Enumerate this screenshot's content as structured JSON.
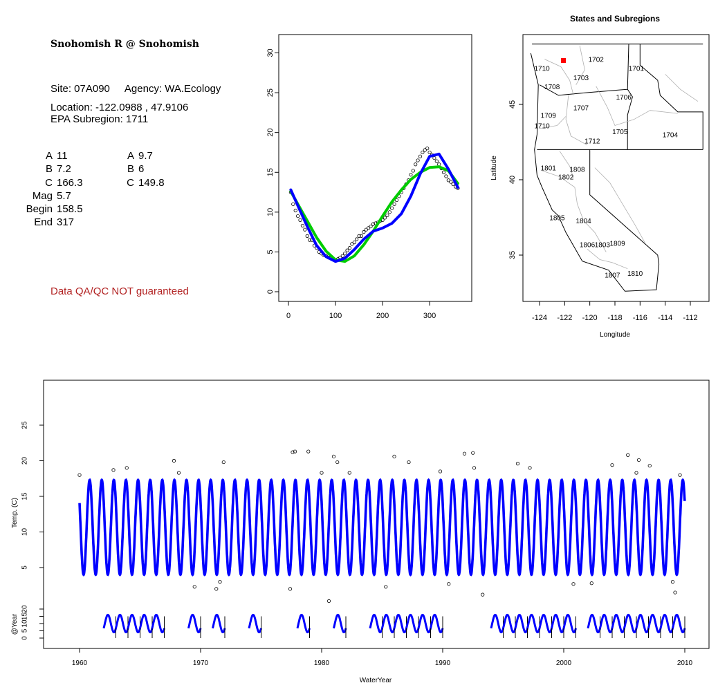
{
  "site": {
    "title": "Snohomish R @ Snohomish",
    "site_line": "Site: 07A090",
    "agency_line": "Agency: WA.Ecology",
    "location_line": "Location: -122.0988 , 47.9106",
    "subregion_line": "EPA Subregion: 1711",
    "disclaimer": "Data QA/QC NOT guaranteed"
  },
  "params": {
    "left": [
      {
        "label": "A",
        "value": "11"
      },
      {
        "label": "B",
        "value": "7.2"
      },
      {
        "label": "C",
        "value": "166.3"
      },
      {
        "label": "Mag",
        "value": "5.7"
      },
      {
        "label": "Begin",
        "value": "158.5"
      },
      {
        "label": "End",
        "value": "317"
      }
    ],
    "right": [
      {
        "label": "A",
        "value": "9.7"
      },
      {
        "label": "B",
        "value": "6"
      },
      {
        "label": "C",
        "value": "149.8"
      }
    ]
  },
  "colors": {
    "fit_blue": "#0000ff",
    "fit_green": "#00cc00",
    "point": "#000000",
    "disclaimer": "#b22222",
    "state_line": "#000000",
    "subregion_line": "#b0b0b0",
    "site_marker": "#ff0000"
  },
  "chart_data": [
    {
      "type": "scatter",
      "xlim": [
        0,
        366
      ],
      "ylim": [
        0,
        31
      ],
      "xticks": [
        0,
        100,
        200,
        300
      ],
      "yticks": [
        0,
        5,
        10,
        15,
        20,
        25,
        30
      ],
      "series": [
        {
          "kind": "points",
          "marker": "open-circle",
          "x": [
            5,
            10,
            15,
            20,
            25,
            30,
            35,
            40,
            45,
            50,
            55,
            60,
            65,
            70,
            75,
            80,
            85,
            90,
            95,
            100,
            105,
            110,
            115,
            120,
            125,
            130,
            135,
            140,
            145,
            150,
            155,
            160,
            165,
            170,
            175,
            180,
            185,
            190,
            195,
            200,
            205,
            210,
            215,
            220,
            225,
            230,
            235,
            240,
            245,
            250,
            255,
            260,
            265,
            270,
            275,
            280,
            285,
            290,
            295,
            300,
            305,
            310,
            315,
            320,
            325,
            330,
            335,
            340,
            345,
            350,
            355,
            360
          ],
          "y": [
            12.5,
            11,
            10.2,
            9.5,
            9,
            8.3,
            7.8,
            7,
            6.5,
            6.5,
            5.8,
            5.5,
            5,
            4.8,
            4.6,
            4.5,
            4.3,
            4.2,
            4.1,
            4,
            4.1,
            4.3,
            4.5,
            4.8,
            5.2,
            5.5,
            6,
            6.2,
            6.6,
            7,
            7,
            7.5,
            7.8,
            8,
            8.2,
            8.5,
            8.6,
            8.7,
            8.9,
            9,
            9.3,
            9.6,
            10,
            10.5,
            11,
            11.5,
            12,
            12.5,
            13,
            13.5,
            14,
            14.7,
            15.2,
            16,
            16.5,
            17,
            17.5,
            17.8,
            18,
            17.5,
            17.2,
            16.8,
            16.4,
            16,
            15.5,
            15,
            14.5,
            14,
            13.8,
            13.5,
            13.2,
            13
          ]
        },
        {
          "kind": "line",
          "color": "#00cc00",
          "x": [
            5,
            20,
            40,
            60,
            80,
            100,
            120,
            140,
            160,
            180,
            200,
            220,
            240,
            260,
            280,
            300,
            320,
            340,
            360
          ],
          "y": [
            12.6,
            11,
            8.9,
            6.8,
            5.1,
            4.0,
            3.8,
            4.5,
            5.9,
            7.6,
            9.5,
            11.3,
            12.8,
            14.1,
            15.0,
            15.6,
            15.7,
            15.2,
            13.6
          ]
        },
        {
          "kind": "line",
          "color": "#0000ff",
          "x": [
            5,
            20,
            40,
            60,
            80,
            100,
            120,
            140,
            160,
            180,
            200,
            220,
            240,
            260,
            280,
            300,
            320,
            340,
            360
          ],
          "y": [
            12.8,
            10.8,
            8.2,
            5.8,
            4.4,
            3.8,
            4.2,
            5.3,
            6.6,
            7.6,
            8.0,
            8.6,
            9.8,
            12.0,
            14.8,
            17.0,
            17.3,
            15.4,
            13.1
          ]
        }
      ]
    },
    {
      "type": "map",
      "title": "States and Subregions",
      "xlabel": "Longitude",
      "ylabel": "Latitude",
      "xlim": [
        -125.5,
        -110.5
      ],
      "ylim": [
        32.3,
        49.5
      ],
      "xticks": [
        -124,
        -122,
        -120,
        -118,
        -116,
        -114,
        -112
      ],
      "yticks": [
        35,
        40,
        45
      ],
      "site": {
        "lon": -122.0988,
        "lat": 47.9106
      },
      "subregion_labels": [
        {
          "text": "1702",
          "lon": -119.5,
          "lat": 48.0
        },
        {
          "text": "1701",
          "lon": -116.3,
          "lat": 47.4
        },
        {
          "text": "1710",
          "lon": -123.8,
          "lat": 47.4
        },
        {
          "text": "1703",
          "lon": -120.7,
          "lat": 46.8
        },
        {
          "text": "1708",
          "lon": -123.0,
          "lat": 46.2
        },
        {
          "text": "1706",
          "lon": -117.3,
          "lat": 45.5
        },
        {
          "text": "1707",
          "lon": -120.7,
          "lat": 44.8
        },
        {
          "text": "1709",
          "lon": -123.3,
          "lat": 44.3
        },
        {
          "text": "1710",
          "lon": -123.8,
          "lat": 43.6
        },
        {
          "text": "1705",
          "lon": -117.6,
          "lat": 43.2
        },
        {
          "text": "1704",
          "lon": -113.6,
          "lat": 43.0
        },
        {
          "text": "1712",
          "lon": -119.8,
          "lat": 42.6
        },
        {
          "text": "1801",
          "lon": -123.3,
          "lat": 40.8
        },
        {
          "text": "1808",
          "lon": -121.0,
          "lat": 40.7
        },
        {
          "text": "1802",
          "lon": -121.9,
          "lat": 40.2
        },
        {
          "text": "1805",
          "lon": -122.6,
          "lat": 37.5
        },
        {
          "text": "1804",
          "lon": -120.5,
          "lat": 37.3
        },
        {
          "text": "1809",
          "lon": -117.8,
          "lat": 35.8
        },
        {
          "text": "1806",
          "lon": -120.2,
          "lat": 35.7
        },
        {
          "text": "1803",
          "lon": -119.0,
          "lat": 35.7
        },
        {
          "text": "1810",
          "lon": -116.4,
          "lat": 33.8
        },
        {
          "text": "1807",
          "lon": -118.2,
          "lat": 33.7
        }
      ]
    },
    {
      "type": "line",
      "xlabel": "WaterYear",
      "ylabel": "Temp. (C)",
      "ylabel2": "@Year",
      "xlim": [
        1957,
        2012
      ],
      "xticks": [
        1960,
        1970,
        1980,
        1990,
        2000,
        2010
      ],
      "ylim": [
        0,
        30
      ],
      "yticks": [
        5,
        10,
        15,
        20,
        25
      ],
      "yticks2": [
        0,
        5,
        10,
        15,
        20
      ],
      "seasonal_series": {
        "start_year": 1960,
        "end_year": 2010,
        "min": 4,
        "max": 17.3,
        "peak_day": 305
      },
      "annual_segments_years": [
        1962,
        1963,
        1964,
        1965,
        1966,
        1969,
        1971,
        1974,
        1978,
        1981,
        1984,
        1985,
        1986,
        1987,
        1988,
        1989,
        1994,
        1995,
        1996,
        1997,
        1998,
        1999,
        2000,
        2002,
        2003,
        2004,
        2005,
        2006,
        2007,
        2008,
        2009
      ],
      "outliers": [
        {
          "x": 1960.0,
          "y": 18.0
        },
        {
          "x": 1962.8,
          "y": 18.7
        },
        {
          "x": 1963.9,
          "y": 19.0
        },
        {
          "x": 1967.8,
          "y": 20.0
        },
        {
          "x": 1968.2,
          "y": 18.3
        },
        {
          "x": 1971.9,
          "y": 19.8
        },
        {
          "x": 1977.6,
          "y": 21.2
        },
        {
          "x": 1977.8,
          "y": 21.3
        },
        {
          "x": 1978.9,
          "y": 21.3
        },
        {
          "x": 1980.0,
          "y": 18.3
        },
        {
          "x": 1981.0,
          "y": 20.6
        },
        {
          "x": 1981.3,
          "y": 19.8
        },
        {
          "x": 1982.3,
          "y": 18.3
        },
        {
          "x": 1986.0,
          "y": 20.6
        },
        {
          "x": 1987.2,
          "y": 19.8
        },
        {
          "x": 1989.8,
          "y": 18.5
        },
        {
          "x": 1991.8,
          "y": 21.0
        },
        {
          "x": 1992.5,
          "y": 21.1
        },
        {
          "x": 1992.6,
          "y": 19.0
        },
        {
          "x": 1996.2,
          "y": 19.6
        },
        {
          "x": 1997.2,
          "y": 19.0
        },
        {
          "x": 2004.0,
          "y": 19.4
        },
        {
          "x": 2005.3,
          "y": 20.8
        },
        {
          "x": 2006.2,
          "y": 20.1
        },
        {
          "x": 2006.0,
          "y": 18.3
        },
        {
          "x": 2007.1,
          "y": 19.3
        },
        {
          "x": 2009.6,
          "y": 18.0
        },
        {
          "x": 1969.5,
          "y": 2.3
        },
        {
          "x": 1971.3,
          "y": 2.0
        },
        {
          "x": 1971.6,
          "y": 3.0
        },
        {
          "x": 1977.4,
          "y": 2.0
        },
        {
          "x": 1980.6,
          "y": 0.3
        },
        {
          "x": 1985.3,
          "y": 2.3
        },
        {
          "x": 1993.3,
          "y": 1.2
        },
        {
          "x": 1990.5,
          "y": 2.7
        },
        {
          "x": 2000.8,
          "y": 2.7
        },
        {
          "x": 2002.3,
          "y": 2.8
        },
        {
          "x": 2009.2,
          "y": 1.5
        },
        {
          "x": 2009.0,
          "y": 3.0
        }
      ]
    }
  ]
}
